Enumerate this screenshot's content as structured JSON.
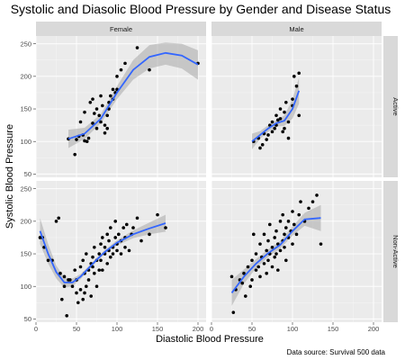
{
  "chart_data": {
    "type": "scatter",
    "title": "Systolic and Diasolic Blood Pressure by Gender and Disease Status",
    "xlabel": "Diastolic Blood Pressure",
    "ylabel": "Systolic Blood Pressure",
    "caption": "Data source: Survival 500 data",
    "xlim": [
      0,
      210
    ],
    "ylim": [
      45,
      262
    ],
    "x_ticks": [
      0,
      50,
      100,
      150,
      200
    ],
    "y_ticks": [
      50,
      100,
      150,
      200,
      250
    ],
    "facet_cols": [
      "Female",
      "Male"
    ],
    "facet_rows": [
      "Active",
      "Non-Active"
    ],
    "grid": true,
    "smoother": "loess",
    "colors": {
      "panel_bg": "#ebebeb",
      "grid_major": "#ffffff",
      "strip_bg": "#d9d9d9",
      "point": "#000000",
      "line": "#3366ff",
      "band": "#999999"
    },
    "panels": [
      {
        "col": "Female",
        "row": "Active",
        "points": [
          [
            40,
            104
          ],
          [
            48,
            80
          ],
          [
            50,
            103
          ],
          [
            53,
            108
          ],
          [
            55,
            130
          ],
          [
            58,
            110
          ],
          [
            60,
            101
          ],
          [
            60,
            145
          ],
          [
            63,
            100
          ],
          [
            65,
            105
          ],
          [
            67,
            160
          ],
          [
            70,
            165
          ],
          [
            70,
            128
          ],
          [
            72,
            143
          ],
          [
            75,
            150
          ],
          [
            75,
            120
          ],
          [
            78,
            140
          ],
          [
            80,
            170
          ],
          [
            80,
            130
          ],
          [
            82,
            155
          ],
          [
            85,
            113
          ],
          [
            85,
            125
          ],
          [
            88,
            120
          ],
          [
            88,
            140
          ],
          [
            90,
            150
          ],
          [
            90,
            160
          ],
          [
            92,
            170
          ],
          [
            95,
            180
          ],
          [
            95,
            165
          ],
          [
            98,
            175
          ],
          [
            100,
            180
          ],
          [
            100,
            200
          ],
          [
            105,
            210
          ],
          [
            110,
            220
          ],
          [
            125,
            244
          ],
          [
            140,
            210
          ],
          [
            200,
            220
          ]
        ],
        "fit": [
          [
            40,
            104
          ],
          [
            60,
            112
          ],
          [
            80,
            135
          ],
          [
            100,
            175
          ],
          [
            120,
            210
          ],
          [
            140,
            230
          ],
          [
            160,
            236
          ],
          [
            180,
            232
          ],
          [
            200,
            218
          ]
        ],
        "band_upper": [
          [
            40,
            118
          ],
          [
            60,
            121
          ],
          [
            80,
            142
          ],
          [
            100,
            185
          ],
          [
            120,
            225
          ],
          [
            140,
            248
          ],
          [
            160,
            252
          ],
          [
            180,
            250
          ],
          [
            200,
            240
          ]
        ],
        "band_lower": [
          [
            40,
            90
          ],
          [
            60,
            104
          ],
          [
            80,
            128
          ],
          [
            100,
            165
          ],
          [
            120,
            195
          ],
          [
            140,
            212
          ],
          [
            160,
            218
          ],
          [
            180,
            212
          ],
          [
            200,
            195
          ]
        ]
      },
      {
        "col": "Male",
        "row": "Active",
        "points": [
          [
            52,
            100
          ],
          [
            58,
            105
          ],
          [
            60,
            90
          ],
          [
            63,
            95
          ],
          [
            65,
            112
          ],
          [
            68,
            103
          ],
          [
            70,
            110
          ],
          [
            72,
            125
          ],
          [
            75,
            115
          ],
          [
            75,
            130
          ],
          [
            78,
            120
          ],
          [
            80,
            140
          ],
          [
            80,
            125
          ],
          [
            82,
            133
          ],
          [
            85,
            150
          ],
          [
            85,
            135
          ],
          [
            88,
            115
          ],
          [
            90,
            145
          ],
          [
            90,
            120
          ],
          [
            92,
            160
          ],
          [
            95,
            130
          ],
          [
            95,
            105
          ],
          [
            100,
            155
          ],
          [
            100,
            165
          ],
          [
            102,
            200
          ],
          [
            105,
            185
          ],
          [
            108,
            205
          ],
          [
            108,
            140
          ]
        ],
        "fit": [
          [
            50,
            100
          ],
          [
            60,
            110
          ],
          [
            70,
            120
          ],
          [
            80,
            128
          ],
          [
            90,
            132
          ],
          [
            100,
            150
          ],
          [
            108,
            178
          ]
        ],
        "band_upper": [
          [
            50,
            112
          ],
          [
            60,
            116
          ],
          [
            70,
            125
          ],
          [
            80,
            133
          ],
          [
            90,
            140
          ],
          [
            100,
            165
          ],
          [
            108,
            198
          ]
        ],
        "band_lower": [
          [
            50,
            88
          ],
          [
            60,
            104
          ],
          [
            70,
            115
          ],
          [
            80,
            123
          ],
          [
            90,
            124
          ],
          [
            100,
            135
          ],
          [
            108,
            158
          ]
        ]
      },
      {
        "col": "Female",
        "row": "Non-Active",
        "points": [
          [
            5,
            175
          ],
          [
            8,
            175
          ],
          [
            10,
            160
          ],
          [
            15,
            140
          ],
          [
            20,
            140
          ],
          [
            25,
            200
          ],
          [
            28,
            205
          ],
          [
            30,
            120
          ],
          [
            32,
            80
          ],
          [
            35,
            100
          ],
          [
            35,
            115
          ],
          [
            38,
            55
          ],
          [
            40,
            110
          ],
          [
            42,
            110
          ],
          [
            45,
            100
          ],
          [
            48,
            125
          ],
          [
            50,
            90
          ],
          [
            50,
            110
          ],
          [
            52,
            75
          ],
          [
            55,
            130
          ],
          [
            55,
            95
          ],
          [
            58,
            140
          ],
          [
            58,
            80
          ],
          [
            60,
            120
          ],
          [
            60,
            90
          ],
          [
            62,
            150
          ],
          [
            62,
            100
          ],
          [
            65,
            125
          ],
          [
            65,
            110
          ],
          [
            68,
            135
          ],
          [
            68,
            85
          ],
          [
            70,
            130
          ],
          [
            70,
            145
          ],
          [
            72,
            120
          ],
          [
            72,
            160
          ],
          [
            75,
            140
          ],
          [
            75,
            100
          ],
          [
            78,
            150
          ],
          [
            78,
            125
          ],
          [
            80,
            165
          ],
          [
            80,
            140
          ],
          [
            82,
            125
          ],
          [
            82,
            175
          ],
          [
            85,
            150
          ],
          [
            85,
            160
          ],
          [
            88,
            135
          ],
          [
            88,
            180
          ],
          [
            90,
            155
          ],
          [
            90,
            170
          ],
          [
            92,
            145
          ],
          [
            92,
            190
          ],
          [
            95,
            160
          ],
          [
            95,
            150
          ],
          [
            98,
            175
          ],
          [
            98,
            200
          ],
          [
            100,
            165
          ],
          [
            100,
            155
          ],
          [
            102,
            180
          ],
          [
            105,
            170
          ],
          [
            105,
            150
          ],
          [
            108,
            190
          ],
          [
            110,
            175
          ],
          [
            110,
            160
          ],
          [
            112,
            195
          ],
          [
            115,
            155
          ],
          [
            118,
            180
          ],
          [
            120,
            190
          ],
          [
            125,
            205
          ],
          [
            130,
            170
          ],
          [
            140,
            180
          ],
          [
            150,
            210
          ],
          [
            160,
            190
          ]
        ],
        "fit": [
          [
            5,
            185
          ],
          [
            15,
            150
          ],
          [
            25,
            122
          ],
          [
            35,
            106
          ],
          [
            45,
            106
          ],
          [
            55,
            115
          ],
          [
            65,
            128
          ],
          [
            75,
            141
          ],
          [
            85,
            153
          ],
          [
            100,
            167
          ],
          [
            120,
            180
          ],
          [
            140,
            189
          ],
          [
            160,
            197
          ]
        ],
        "band_upper": [
          [
            5,
            205
          ],
          [
            15,
            165
          ],
          [
            25,
            132
          ],
          [
            35,
            114
          ],
          [
            45,
            112
          ],
          [
            55,
            119
          ],
          [
            65,
            131
          ],
          [
            75,
            144
          ],
          [
            85,
            156
          ],
          [
            100,
            171
          ],
          [
            120,
            186
          ],
          [
            140,
            198
          ],
          [
            160,
            210
          ]
        ],
        "band_lower": [
          [
            5,
            165
          ],
          [
            15,
            135
          ],
          [
            25,
            112
          ],
          [
            35,
            98
          ],
          [
            45,
            100
          ],
          [
            55,
            111
          ],
          [
            65,
            125
          ],
          [
            75,
            138
          ],
          [
            85,
            150
          ],
          [
            100,
            163
          ],
          [
            120,
            174
          ],
          [
            140,
            180
          ],
          [
            160,
            184
          ]
        ]
      },
      {
        "col": "Male",
        "row": "Non-Active",
        "points": [
          [
            25,
            115
          ],
          [
            27,
            60
          ],
          [
            30,
            95
          ],
          [
            35,
            110
          ],
          [
            38,
            105
          ],
          [
            40,
            120
          ],
          [
            42,
            85
          ],
          [
            45,
            130
          ],
          [
            48,
            100
          ],
          [
            50,
            140
          ],
          [
            50,
            110
          ],
          [
            52,
            180
          ],
          [
            55,
            125
          ],
          [
            55,
            150
          ],
          [
            58,
            130
          ],
          [
            60,
            165
          ],
          [
            60,
            115
          ],
          [
            62,
            145
          ],
          [
            65,
            135
          ],
          [
            65,
            180
          ],
          [
            68,
            155
          ],
          [
            68,
            120
          ],
          [
            70,
            170
          ],
          [
            70,
            140
          ],
          [
            72,
            150
          ],
          [
            72,
            195
          ],
          [
            75,
            160
          ],
          [
            75,
            130
          ],
          [
            78,
            175
          ],
          [
            78,
            145
          ],
          [
            80,
            150
          ],
          [
            80,
            185
          ],
          [
            82,
            165
          ],
          [
            82,
            125
          ],
          [
            85,
            200
          ],
          [
            85,
            155
          ],
          [
            88,
            170
          ],
          [
            88,
            210
          ],
          [
            90,
            160
          ],
          [
            90,
            180
          ],
          [
            92,
            190
          ],
          [
            92,
            140
          ],
          [
            95,
            175
          ],
          [
            95,
            200
          ],
          [
            98,
            185
          ],
          [
            100,
            165
          ],
          [
            100,
            215
          ],
          [
            102,
            195
          ],
          [
            105,
            180
          ],
          [
            108,
            210
          ],
          [
            110,
            230
          ],
          [
            115,
            200
          ],
          [
            120,
            220
          ],
          [
            125,
            230
          ],
          [
            130,
            240
          ],
          [
            135,
            165
          ]
        ],
        "fit": [
          [
            25,
            90
          ],
          [
            40,
            115
          ],
          [
            55,
            135
          ],
          [
            70,
            151
          ],
          [
            85,
            164
          ],
          [
            100,
            185
          ],
          [
            115,
            203
          ],
          [
            135,
            205
          ]
        ],
        "band_upper": [
          [
            25,
            110
          ],
          [
            40,
            126
          ],
          [
            55,
            142
          ],
          [
            70,
            157
          ],
          [
            85,
            170
          ],
          [
            100,
            192
          ],
          [
            115,
            213
          ],
          [
            135,
            225
          ]
        ],
        "band_lower": [
          [
            25,
            70
          ],
          [
            40,
            104
          ],
          [
            55,
            128
          ],
          [
            70,
            145
          ],
          [
            85,
            158
          ],
          [
            100,
            178
          ],
          [
            115,
            193
          ],
          [
            135,
            185
          ]
        ]
      }
    ]
  }
}
